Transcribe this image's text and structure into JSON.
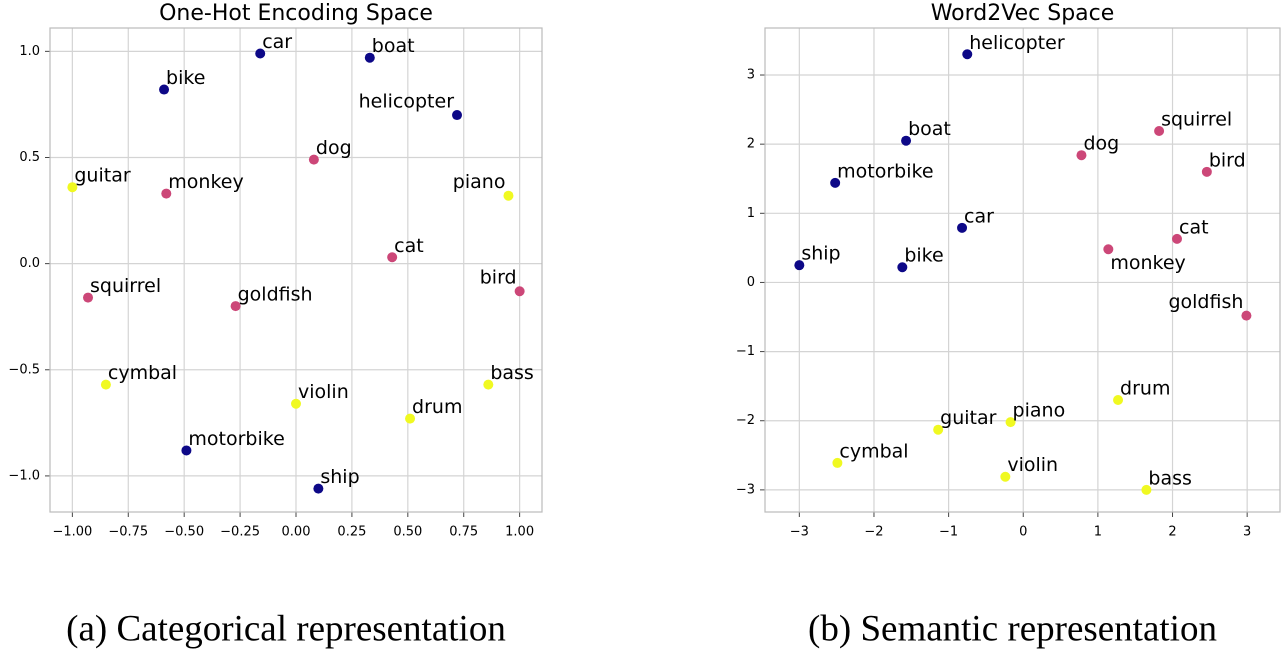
{
  "chart_data": [
    {
      "type": "scatter",
      "title": "One-Hot Encoding Space",
      "caption": "(a) Categorical representation",
      "xlim": [
        -1.1,
        1.1
      ],
      "ylim": [
        -1.17,
        1.11
      ],
      "xticks": [
        {
          "value": -1,
          "label": "−1.00"
        },
        {
          "value": -0.75,
          "label": "−0.75"
        },
        {
          "value": -0.5,
          "label": "−0.50"
        },
        {
          "value": -0.25,
          "label": "−0.25"
        },
        {
          "value": 0,
          "label": "0.00"
        },
        {
          "value": 0.25,
          "label": "0.25"
        },
        {
          "value": 0.5,
          "label": "0.50"
        },
        {
          "value": 0.75,
          "label": "0.75"
        },
        {
          "value": 1,
          "label": "1.00"
        }
      ],
      "yticks": [
        {
          "value": -1,
          "label": "−1.0"
        },
        {
          "value": -0.5,
          "label": "−0.5"
        },
        {
          "value": 0,
          "label": "0.0"
        },
        {
          "value": 0.5,
          "label": "0.5"
        },
        {
          "value": 1,
          "label": "1.0"
        }
      ],
      "grid": true,
      "series": [
        {
          "color": "#0d0887",
          "labels": [
            "car",
            "boat",
            "bike",
            "helicopter",
            "motorbike",
            "ship"
          ],
          "x": [
            -0.16,
            0.33,
            -0.59,
            0.72,
            -0.49,
            0.1
          ],
          "y": [
            0.99,
            0.97,
            0.82,
            0.7,
            -0.88,
            -1.06
          ]
        },
        {
          "color": "#cc4778",
          "labels": [
            "dog",
            "monkey",
            "cat",
            "squirrel",
            "bird",
            "goldfish"
          ],
          "x": [
            0.08,
            -0.58,
            0.43,
            -0.93,
            1.0,
            -0.27
          ],
          "y": [
            0.49,
            0.33,
            0.03,
            -0.16,
            -0.13,
            -0.2
          ]
        },
        {
          "color": "#f0f921",
          "labels": [
            "guitar",
            "piano",
            "cymbal",
            "bass",
            "violin",
            "drum"
          ],
          "x": [
            -1.0,
            0.95,
            -0.85,
            0.86,
            0.0,
            0.51
          ],
          "y": [
            0.36,
            0.32,
            -0.57,
            -0.57,
            -0.66,
            -0.73
          ]
        }
      ]
    },
    {
      "type": "scatter",
      "title": "Word2Vec Space",
      "caption": "(b) Semantic representation",
      "xlim": [
        -3.46,
        3.44
      ],
      "ylim": [
        -3.32,
        3.68
      ],
      "xticks": [
        {
          "value": -3,
          "label": "−3"
        },
        {
          "value": -2,
          "label": "−2"
        },
        {
          "value": -1,
          "label": "−1"
        },
        0,
        1,
        2,
        3
      ],
      "yticks": [
        {
          "value": -3,
          "label": "−3"
        },
        {
          "value": -2,
          "label": "−2"
        },
        {
          "value": -1,
          "label": "−1"
        },
        0,
        1,
        2,
        3
      ],
      "grid": true,
      "series": [
        {
          "color": "#0d0887",
          "labels": [
            "helicopter",
            "boat",
            "motorbike",
            "car",
            "ship",
            "bike"
          ],
          "x": [
            -0.75,
            -1.57,
            -2.52,
            -0.82,
            -3.0,
            -1.62
          ],
          "y": [
            3.3,
            2.05,
            1.44,
            0.79,
            0.25,
            0.22
          ]
        },
        {
          "color": "#cc4778",
          "labels": [
            "squirrel",
            "dog",
            "bird",
            "cat",
            "monkey",
            "goldfish"
          ],
          "x": [
            1.82,
            0.78,
            2.46,
            2.06,
            1.14,
            2.99
          ],
          "y": [
            2.19,
            1.84,
            1.6,
            0.63,
            0.48,
            -0.48
          ]
        },
        {
          "color": "#f0f921",
          "labels": [
            "drum",
            "piano",
            "guitar",
            "cymbal",
            "violin",
            "bass"
          ],
          "x": [
            1.27,
            -0.17,
            -1.14,
            -2.49,
            -0.24,
            1.65
          ],
          "y": [
            -1.7,
            -2.02,
            -2.13,
            -2.61,
            -2.81,
            -3.0
          ]
        }
      ]
    }
  ]
}
